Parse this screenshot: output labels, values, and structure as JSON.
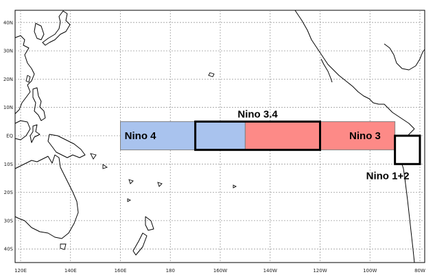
{
  "map": {
    "lon_ticks": [
      "120E",
      "140E",
      "160E",
      "180",
      "160W",
      "140W",
      "120W",
      "100W",
      "80W"
    ],
    "lat_ticks": [
      "40N",
      "30N",
      "20N",
      "10N",
      "EQ",
      "10S",
      "20S",
      "30S",
      "40S"
    ],
    "extent": {
      "lon_min_east": 120,
      "lon_max_east": 282,
      "lat_min": -46,
      "lat_max": 46
    },
    "gridlines": "dotted",
    "colors": {
      "cold": "#a9c3ee",
      "warm": "#fd8a87",
      "outline": "#000000",
      "grid": "#9a9a9a"
    }
  },
  "regions": [
    {
      "name": "Nino 4",
      "label": "Nino 4",
      "lon_w": 160,
      "lon_e": 210,
      "lat_s": -5,
      "lat_n": 5,
      "fill": "#a9c3ee"
    },
    {
      "name": "Nino 3",
      "label": "Nino 3",
      "lon_w": 210,
      "lon_e": 270,
      "lat_s": -5,
      "lat_n": 5,
      "fill": "#fd8a87"
    },
    {
      "name": "Nino 3.4",
      "label": "Nino 3.4",
      "lon_w": 190,
      "lon_e": 240,
      "lat_s": -5,
      "lat_n": 5,
      "fill": "none"
    },
    {
      "name": "Nino 1+2",
      "label": "Nino 1+2",
      "lon_w": 270,
      "lon_e": 280,
      "lat_s": -10,
      "lat_n": 0,
      "fill": "none"
    }
  ]
}
